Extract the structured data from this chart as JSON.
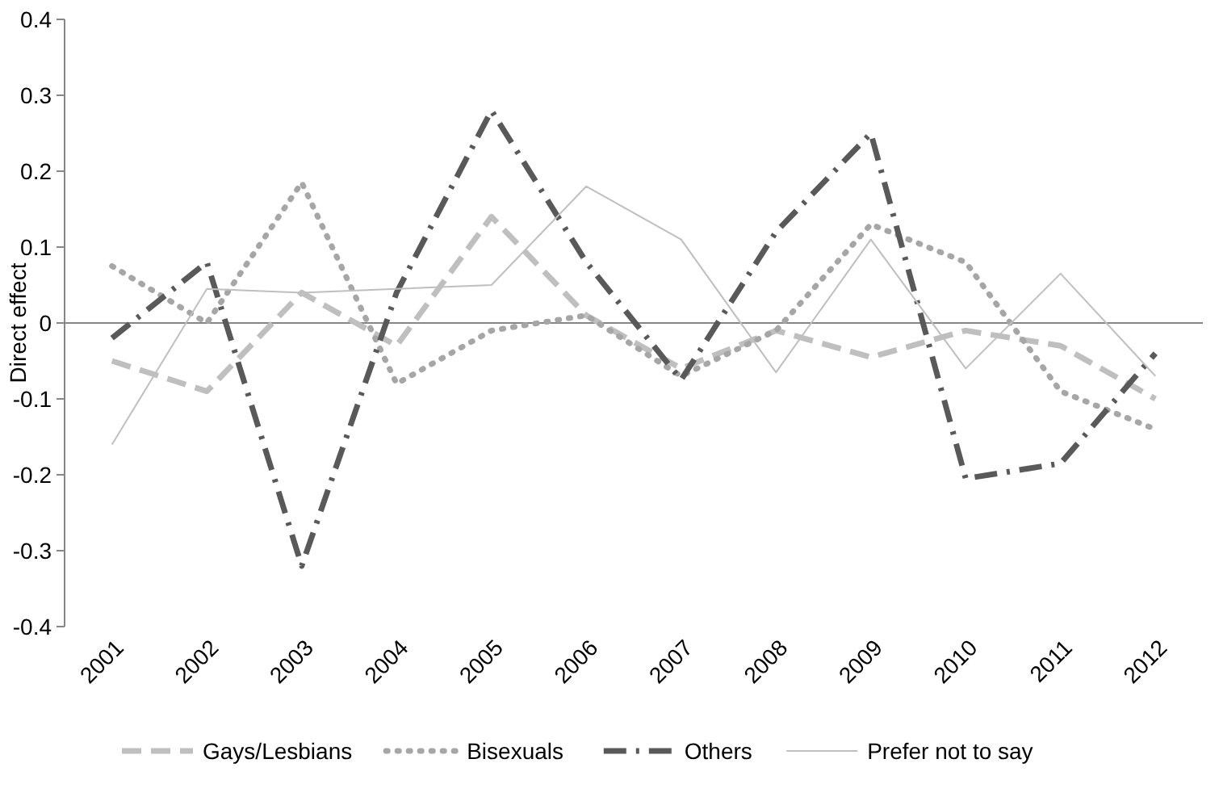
{
  "chart_data": {
    "type": "line",
    "ylabel": "Direct effect",
    "categories": [
      "2001",
      "2002",
      "2003",
      "2004",
      "2005",
      "2006",
      "2007",
      "2008",
      "2009",
      "2010",
      "2011",
      "2012"
    ],
    "ylim": [
      -0.4,
      0.4
    ],
    "yticks": [
      {
        "value": -0.4,
        "label": "-0.4"
      },
      {
        "value": -0.3,
        "label": "-0.3"
      },
      {
        "value": -0.2,
        "label": "-0.2"
      },
      {
        "value": -0.1,
        "label": "-0.1"
      },
      {
        "value": 0,
        "label": "0"
      },
      {
        "value": 0.1,
        "label": "0.1"
      },
      {
        "value": 0.2,
        "label": "0.2"
      },
      {
        "value": 0.3,
        "label": "0.3"
      },
      {
        "value": 0.4,
        "label": "0.4"
      }
    ],
    "legend": "bottom",
    "marker": "none",
    "series": [
      {
        "name": "Gays/Lesbians",
        "color": "#bfbfbf",
        "line_style": "dashed",
        "values": [
          -0.05,
          -0.09,
          0.04,
          -0.03,
          0.14,
          0.01,
          -0.06,
          -0.01,
          -0.045,
          -0.01,
          -0.03,
          -0.1
        ]
      },
      {
        "name": "Bisexuals",
        "color": "#a6a6a6",
        "line_style": "dotted",
        "values": [
          0.075,
          0.0,
          0.185,
          -0.08,
          -0.01,
          0.01,
          -0.07,
          -0.01,
          0.13,
          0.08,
          -0.09,
          -0.14
        ]
      },
      {
        "name": "Others",
        "color": "#595959",
        "line_style": "dashdot",
        "values": [
          -0.02,
          0.08,
          -0.32,
          0.04,
          0.28,
          0.08,
          -0.075,
          0.12,
          0.25,
          -0.205,
          -0.185,
          -0.04
        ]
      },
      {
        "name": "Prefer not to say",
        "color": "#bfbfbf",
        "line_style": "solid",
        "values": [
          -0.16,
          0.045,
          0.04,
          0.045,
          0.05,
          0.18,
          0.11,
          -0.065,
          0.11,
          -0.06,
          0.065,
          -0.07
        ]
      }
    ]
  }
}
